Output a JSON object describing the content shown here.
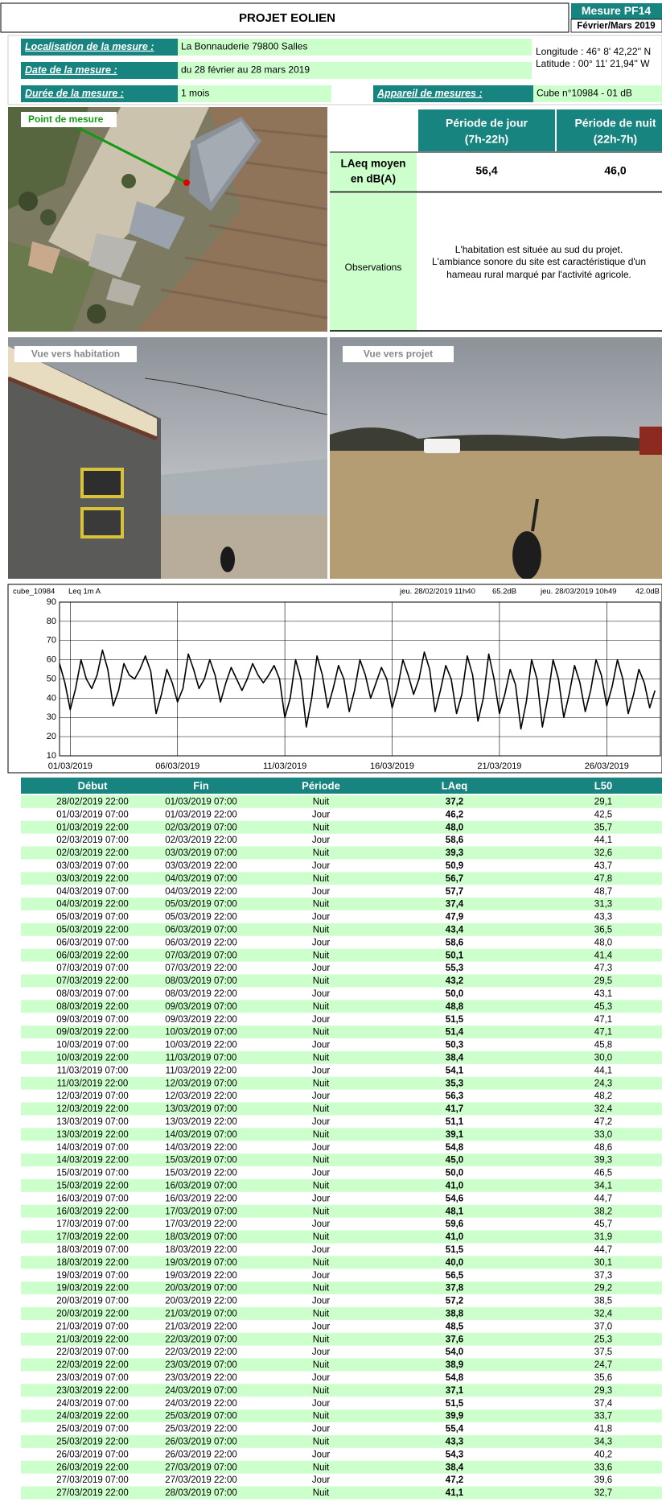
{
  "header": {
    "title": "PROJET EOLIEN",
    "badge": "Mesure PF14",
    "period": "Février/Mars 2019"
  },
  "info": {
    "location_label": "Localisation de la mesure :",
    "location": "La Bonnauderie 79800 Salles",
    "longitude": "Longitude : 46° 8' 42,22'' N",
    "latitude": "Latitude : 00° 11' 21,94'' W",
    "date_label": "Date de la mesure :",
    "date": "du 28 février au 28 mars 2019",
    "duration_label": "Durée de la mesure :",
    "duration": "1 mois",
    "device_label": "Appareil de mesures :",
    "device": "Cube n°10984 - 01 dB"
  },
  "aerial": {
    "label": "Point de mesure"
  },
  "results": {
    "day_header": [
      "Période de jour",
      "(7h-22h)"
    ],
    "night_header": [
      "Période de nuit",
      "(22h-7h)"
    ],
    "row_label": [
      "LAeq moyen",
      "en dB(A)"
    ],
    "day_value": "56,4",
    "night_value": "46,0",
    "observations_label": "Observations",
    "observations": [
      "L'habitation est située au sud du projet.",
      "L'ambiance sonore du site est caractéristique d'un",
      "hameau rural marqué par l'activité agricole."
    ]
  },
  "photos": [
    "Vue vers habitation",
    "Vue vers projet"
  ],
  "chart_data": {
    "type": "line",
    "source": "cube_10984",
    "measure": "Leq 1m A",
    "start": "jeu. 28/02/2019 11h40",
    "start_level": "65.2dB",
    "end": "jeu. 28/03/2019 10h49",
    "end_level": "42.0dB",
    "series": [
      {
        "color": "#000000",
        "values": [
          58,
          48,
          34,
          45,
          60,
          50,
          45,
          52,
          65,
          55,
          36,
          44,
          58,
          52,
          50,
          55,
          62,
          54,
          32,
          42,
          55,
          48,
          38,
          45,
          63,
          55,
          45,
          50,
          60,
          52,
          38,
          48,
          56,
          50,
          44,
          50,
          58,
          52,
          48,
          52,
          57,
          50,
          30,
          40,
          60,
          50,
          25,
          40,
          62,
          52,
          35,
          45,
          57,
          50,
          33,
          44,
          60,
          52,
          40,
          48,
          56,
          50,
          35,
          45,
          60,
          52,
          42,
          50,
          64,
          55,
          33,
          44,
          57,
          50,
          32,
          42,
          62,
          52,
          28,
          40,
          63,
          50,
          32,
          42,
          55,
          47,
          24,
          38,
          60,
          50,
          25,
          40,
          60,
          50,
          30,
          42,
          57,
          48,
          33,
          44,
          60,
          52,
          36,
          46,
          60,
          50,
          32,
          42,
          55,
          48,
          35,
          44
        ]
      }
    ],
    "xlim": [
      0,
      112
    ],
    "xticks": [
      {
        "value": 2,
        "label": "01/03/2019"
      },
      {
        "value": 22,
        "label": "06/03/2019"
      },
      {
        "value": 42,
        "label": "11/03/2019"
      },
      {
        "value": 62,
        "label": "16/03/2019"
      },
      {
        "value": 82,
        "label": "21/03/2019"
      },
      {
        "value": 102,
        "label": "26/03/2019"
      }
    ],
    "ylim": [
      10,
      90
    ],
    "yticks": [
      10,
      20,
      30,
      40,
      50,
      60,
      70,
      80,
      90
    ],
    "grid": true
  },
  "table": {
    "columns": [
      "Début",
      "Fin",
      "Période",
      "LAeq",
      "L50"
    ],
    "rows": [
      [
        "28/02/2019 22:00",
        "01/03/2019 07:00",
        "Nuit",
        "37,2",
        "29,1"
      ],
      [
        "01/03/2019 07:00",
        "01/03/2019 22:00",
        "Jour",
        "46,2",
        "42,5"
      ],
      [
        "01/03/2019 22:00",
        "02/03/2019 07:00",
        "Nuit",
        "48,0",
        "35,7"
      ],
      [
        "02/03/2019 07:00",
        "02/03/2019 22:00",
        "Jour",
        "58,6",
        "44,1"
      ],
      [
        "02/03/2019 22:00",
        "03/03/2019 07:00",
        "Nuit",
        "39,3",
        "32,6"
      ],
      [
        "03/03/2019 07:00",
        "03/03/2019 22:00",
        "Jour",
        "50,9",
        "43,7"
      ],
      [
        "03/03/2019 22:00",
        "04/03/2019 07:00",
        "Nuit",
        "56,7",
        "47,8"
      ],
      [
        "04/03/2019 07:00",
        "04/03/2019 22:00",
        "Jour",
        "57,7",
        "48,7"
      ],
      [
        "04/03/2019 22:00",
        "05/03/2019 07:00",
        "Nuit",
        "37,4",
        "31,3"
      ],
      [
        "05/03/2019 07:00",
        "05/03/2019 22:00",
        "Jour",
        "47,9",
        "43,3"
      ],
      [
        "05/03/2019 22:00",
        "06/03/2019 07:00",
        "Nuit",
        "43,4",
        "36,5"
      ],
      [
        "06/03/2019 07:00",
        "06/03/2019 22:00",
        "Jour",
        "58,6",
        "48,0"
      ],
      [
        "06/03/2019 22:00",
        "07/03/2019 07:00",
        "Nuit",
        "50,1",
        "41,4"
      ],
      [
        "07/03/2019 07:00",
        "07/03/2019 22:00",
        "Jour",
        "55,3",
        "47,3"
      ],
      [
        "07/03/2019 22:00",
        "08/03/2019 07:00",
        "Nuit",
        "43,2",
        "29,5"
      ],
      [
        "08/03/2019 07:00",
        "08/03/2019 22:00",
        "Jour",
        "50,0",
        "43,1"
      ],
      [
        "08/03/2019 22:00",
        "09/03/2019 07:00",
        "Nuit",
        "48,8",
        "45,3"
      ],
      [
        "09/03/2019 07:00",
        "09/03/2019 22:00",
        "Jour",
        "51,5",
        "47,1"
      ],
      [
        "09/03/2019 22:00",
        "10/03/2019 07:00",
        "Nuit",
        "51,4",
        "47,1"
      ],
      [
        "10/03/2019 07:00",
        "10/03/2019 22:00",
        "Jour",
        "50,3",
        "45,8"
      ],
      [
        "10/03/2019 22:00",
        "11/03/2019 07:00",
        "Nuit",
        "38,4",
        "30,0"
      ],
      [
        "11/03/2019 07:00",
        "11/03/2019 22:00",
        "Jour",
        "54,1",
        "44,1"
      ],
      [
        "11/03/2019 22:00",
        "12/03/2019 07:00",
        "Nuit",
        "35,3",
        "24,3"
      ],
      [
        "12/03/2019 07:00",
        "12/03/2019 22:00",
        "Jour",
        "56,3",
        "48,2"
      ],
      [
        "12/03/2019 22:00",
        "13/03/2019 07:00",
        "Nuit",
        "41,7",
        "32,4"
      ],
      [
        "13/03/2019 07:00",
        "13/03/2019 22:00",
        "Jour",
        "51,1",
        "47,2"
      ],
      [
        "13/03/2019 22:00",
        "14/03/2019 07:00",
        "Nuit",
        "39,1",
        "33,0"
      ],
      [
        "14/03/2019 07:00",
        "14/03/2019 22:00",
        "Jour",
        "54,8",
        "48,6"
      ],
      [
        "14/03/2019 22:00",
        "15/03/2019 07:00",
        "Nuit",
        "45,0",
        "39,3"
      ],
      [
        "15/03/2019 07:00",
        "15/03/2019 22:00",
        "Jour",
        "50,0",
        "46,5"
      ],
      [
        "15/03/2019 22:00",
        "16/03/2019 07:00",
        "Nuit",
        "41,0",
        "34,1"
      ],
      [
        "16/03/2019 07:00",
        "16/03/2019 22:00",
        "Jour",
        "54,6",
        "44,7"
      ],
      [
        "16/03/2019 22:00",
        "17/03/2019 07:00",
        "Nuit",
        "48,1",
        "38,2"
      ],
      [
        "17/03/2019 07:00",
        "17/03/2019 22:00",
        "Jour",
        "59,6",
        "45,7"
      ],
      [
        "17/03/2019 22:00",
        "18/03/2019 07:00",
        "Nuit",
        "41,0",
        "31,9"
      ],
      [
        "18/03/2019 07:00",
        "18/03/2019 22:00",
        "Jour",
        "51,5",
        "44,7"
      ],
      [
        "18/03/2019 22:00",
        "19/03/2019 07:00",
        "Nuit",
        "40,0",
        "30,1"
      ],
      [
        "19/03/2019 07:00",
        "19/03/2019 22:00",
        "Jour",
        "56,5",
        "37,3"
      ],
      [
        "19/03/2019 22:00",
        "20/03/2019 07:00",
        "Nuit",
        "37,8",
        "29,2"
      ],
      [
        "20/03/2019 07:00",
        "20/03/2019 22:00",
        "Jour",
        "57,2",
        "38,5"
      ],
      [
        "20/03/2019 22:00",
        "21/03/2019 07:00",
        "Nuit",
        "38,8",
        "32,4"
      ],
      [
        "21/03/2019 07:00",
        "21/03/2019 22:00",
        "Jour",
        "48,5",
        "37,0"
      ],
      [
        "21/03/2019 22:00",
        "22/03/2019 07:00",
        "Nuit",
        "37,6",
        "25,3"
      ],
      [
        "22/03/2019 07:00",
        "22/03/2019 22:00",
        "Jour",
        "54,0",
        "37,5"
      ],
      [
        "22/03/2019 22:00",
        "23/03/2019 07:00",
        "Nuit",
        "38,9",
        "24,7"
      ],
      [
        "23/03/2019 07:00",
        "23/03/2019 22:00",
        "Jour",
        "54,8",
        "35,6"
      ],
      [
        "23/03/2019 22:00",
        "24/03/2019 07:00",
        "Nuit",
        "37,1",
        "29,3"
      ],
      [
        "24/03/2019 07:00",
        "24/03/2019 22:00",
        "Jour",
        "51,5",
        "37,4"
      ],
      [
        "24/03/2019 22:00",
        "25/03/2019 07:00",
        "Nuit",
        "39,9",
        "33,7"
      ],
      [
        "25/03/2019 07:00",
        "25/03/2019 22:00",
        "Jour",
        "55,4",
        "41,8"
      ],
      [
        "25/03/2019 22:00",
        "26/03/2019 07:00",
        "Nuit",
        "43,3",
        "34,3"
      ],
      [
        "26/03/2019 07:00",
        "26/03/2019 22:00",
        "Jour",
        "54,3",
        "40,2"
      ],
      [
        "26/03/2019 22:00",
        "27/03/2019 07:00",
        "Nuit",
        "38,4",
        "33,6"
      ],
      [
        "27/03/2019 07:00",
        "27/03/2019 22:00",
        "Jour",
        "47,2",
        "39,6"
      ],
      [
        "27/03/2019 22:00",
        "28/03/2019 07:00",
        "Nuit",
        "41,1",
        "32,7"
      ]
    ]
  }
}
